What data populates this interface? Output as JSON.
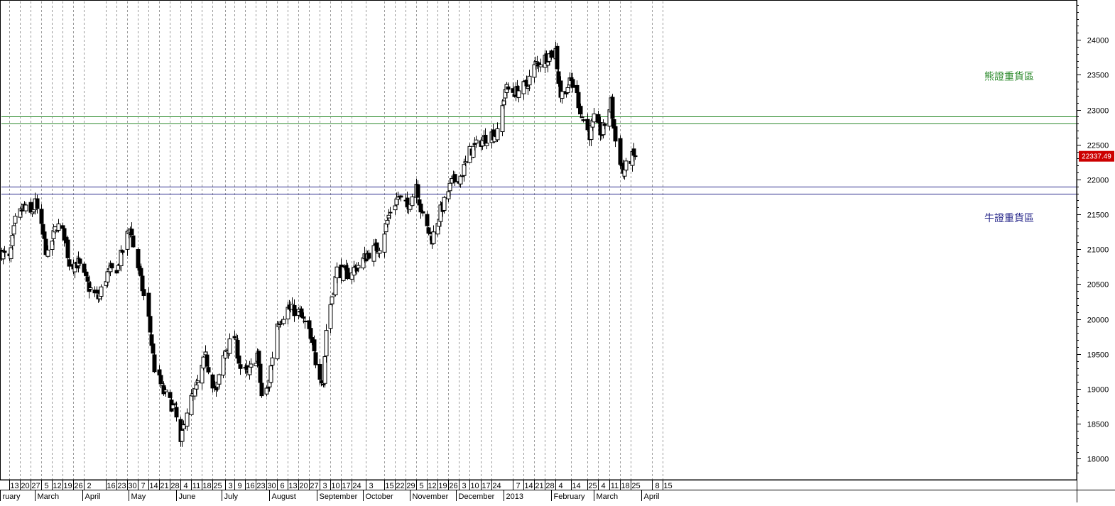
{
  "chart_data": {
    "type": "candlestick",
    "title": "",
    "xlabel": "",
    "ylabel": "",
    "ylim": [
      17700,
      24550
    ],
    "y_ticks": [
      18000,
      18500,
      19000,
      19500,
      20000,
      20500,
      21000,
      21500,
      22000,
      22500,
      23000,
      23500,
      24000
    ],
    "last_price_label": "22337.49",
    "last_price_value": 22337.49,
    "grid": "vertical dotted",
    "colors": {
      "bear_zone": "#2e8b2e",
      "bull_zone": "#2b2b8c",
      "candle": "#000000",
      "last_price_bg": "#cc0000",
      "last_price_text": "#ffffff"
    },
    "annotations": [
      {
        "text": "熊證重貨區",
        "kind": "bear",
        "y": 23480
      },
      {
        "text": "牛證重貨區",
        "kind": "bull",
        "y": 21450
      }
    ],
    "zones": [
      {
        "kind": "bear",
        "lower": 22800,
        "upper": 22900
      },
      {
        "kind": "bull",
        "lower": 21800,
        "upper": 21900
      }
    ],
    "x_day_labels": [
      "13",
      "20",
      "27",
      "5",
      "12",
      "19",
      "26",
      "2",
      "16",
      "23",
      "30",
      "7",
      "14",
      "21",
      "28",
      "4",
      "11",
      "18",
      "25",
      "3",
      "9",
      "16",
      "23",
      "30",
      "6",
      "13",
      "20",
      "27",
      "3",
      "10",
      "17",
      "24",
      "3",
      "15",
      "22",
      "29",
      "5",
      "12",
      "19",
      "26",
      "3",
      "10",
      "17",
      "24",
      "7",
      "14",
      "21",
      "28",
      "4",
      "14",
      "25",
      "4",
      "11",
      "18",
      "25",
      "8",
      "15"
    ],
    "x_month_labels": [
      "ruary",
      "March",
      "April",
      "May",
      "June",
      "July",
      "August",
      "September",
      "October",
      "November",
      "December",
      "2013",
      "February",
      "March",
      "April"
    ],
    "x_start_date": "2012-02-08",
    "day_ticks": [
      "2012-02-13",
      "2012-02-20",
      "2012-02-27",
      "2012-03-05",
      "2012-03-12",
      "2012-03-19",
      "2012-03-26",
      "2012-04-02",
      "2012-04-16",
      "2012-04-23",
      "2012-04-30",
      "2012-05-07",
      "2012-05-14",
      "2012-05-21",
      "2012-05-28",
      "2012-06-04",
      "2012-06-11",
      "2012-06-18",
      "2012-06-25",
      "2012-07-03",
      "2012-07-09",
      "2012-07-16",
      "2012-07-23",
      "2012-07-30",
      "2012-08-06",
      "2012-08-13",
      "2012-08-20",
      "2012-08-27",
      "2012-09-03",
      "2012-09-10",
      "2012-09-17",
      "2012-09-24",
      "2012-10-03",
      "2012-10-15",
      "2012-10-22",
      "2012-10-29",
      "2012-11-05",
      "2012-11-12",
      "2012-11-19",
      "2012-11-26",
      "2012-12-03",
      "2012-12-10",
      "2012-12-17",
      "2012-12-24",
      "2013-01-07",
      "2013-01-14",
      "2013-01-21",
      "2013-01-28",
      "2013-02-04",
      "2013-02-14",
      "2013-02-25",
      "2013-03-04",
      "2013-03-11",
      "2013-03-18",
      "2013-03-25",
      "2013-04-08",
      "2013-04-15"
    ],
    "month_ticks": [
      "2012-02-01",
      "2012-03-01",
      "2012-04-01",
      "2012-05-01",
      "2012-06-01",
      "2012-07-01",
      "2012-08-01",
      "2012-09-01",
      "2012-10-01",
      "2012-11-01",
      "2012-12-01",
      "2013-01-01",
      "2013-02-01",
      "2013-03-01",
      "2013-04-01"
    ],
    "price_path": [
      [
        "2012-02-08",
        20950
      ],
      [
        "2012-02-13",
        20850
      ],
      [
        "2012-02-17",
        21400
      ],
      [
        "2012-02-22",
        21600
      ],
      [
        "2012-02-27",
        21500
      ],
      [
        "2012-03-01",
        21650
      ],
      [
        "2012-03-06",
        21200
      ],
      [
        "2012-03-09",
        20900
      ],
      [
        "2012-03-15",
        21350
      ],
      [
        "2012-03-20",
        21200
      ],
      [
        "2012-03-23",
        20800
      ],
      [
        "2012-03-29",
        20800
      ],
      [
        "2012-04-05",
        20450
      ],
      [
        "2012-04-11",
        20300
      ],
      [
        "2012-04-17",
        20650
      ],
      [
        "2012-04-24",
        20750
      ],
      [
        "2012-05-02",
        21350
      ],
      [
        "2012-05-04",
        21050
      ],
      [
        "2012-05-08",
        20650
      ],
      [
        "2012-05-14",
        20000
      ],
      [
        "2012-05-18",
        19300
      ],
      [
        "2012-05-24",
        18950
      ],
      [
        "2012-05-31",
        18700
      ],
      [
        "2012-06-04",
        18200
      ],
      [
        "2012-06-08",
        18700
      ],
      [
        "2012-06-14",
        19000
      ],
      [
        "2012-06-20",
        19450
      ],
      [
        "2012-06-27",
        18950
      ],
      [
        "2012-07-03",
        19550
      ],
      [
        "2012-07-09",
        19750
      ],
      [
        "2012-07-13",
        19300
      ],
      [
        "2012-07-18",
        19200
      ],
      [
        "2012-07-24",
        19500
      ],
      [
        "2012-07-27",
        18900
      ],
      [
        "2012-07-31",
        19000
      ],
      [
        "2012-08-06",
        19950
      ],
      [
        "2012-08-13",
        20150
      ],
      [
        "2012-08-20",
        20100
      ],
      [
        "2012-08-27",
        19800
      ],
      [
        "2012-08-31",
        19400
      ],
      [
        "2012-09-05",
        19100
      ],
      [
        "2012-09-07",
        19850
      ],
      [
        "2012-09-14",
        20700
      ],
      [
        "2012-09-21",
        20650
      ],
      [
        "2012-09-27",
        20750
      ],
      [
        "2012-10-05",
        20950
      ],
      [
        "2012-10-12",
        21050
      ],
      [
        "2012-10-19",
        21550
      ],
      [
        "2012-10-24",
        21750
      ],
      [
        "2012-10-30",
        21600
      ],
      [
        "2012-11-05",
        21950
      ],
      [
        "2012-11-09",
        21450
      ],
      [
        "2012-11-15",
        21150
      ],
      [
        "2012-11-21",
        21550
      ],
      [
        "2012-11-28",
        21950
      ],
      [
        "2012-12-04",
        22050
      ],
      [
        "2012-12-10",
        22400
      ],
      [
        "2012-12-17",
        22550
      ],
      [
        "2012-12-24",
        22650
      ],
      [
        "2012-12-28",
        22650
      ],
      [
        "2013-01-02",
        23300
      ],
      [
        "2013-01-09",
        23250
      ],
      [
        "2013-01-16",
        23350
      ],
      [
        "2013-01-22",
        23650
      ],
      [
        "2013-01-29",
        23750
      ],
      [
        "2013-02-04",
        23850
      ],
      [
        "2013-02-07",
        23200
      ],
      [
        "2013-02-14",
        23400
      ],
      [
        "2013-02-18",
        23200
      ],
      [
        "2013-02-21",
        22900
      ],
      [
        "2013-02-26",
        22650
      ],
      [
        "2013-03-01",
        22850
      ],
      [
        "2013-03-06",
        22650
      ],
      [
        "2013-03-12",
        23100
      ],
      [
        "2013-03-15",
        22550
      ],
      [
        "2013-03-20",
        22100
      ],
      [
        "2013-03-25",
        22300
      ],
      [
        "2013-03-28",
        22337.49
      ]
    ]
  }
}
